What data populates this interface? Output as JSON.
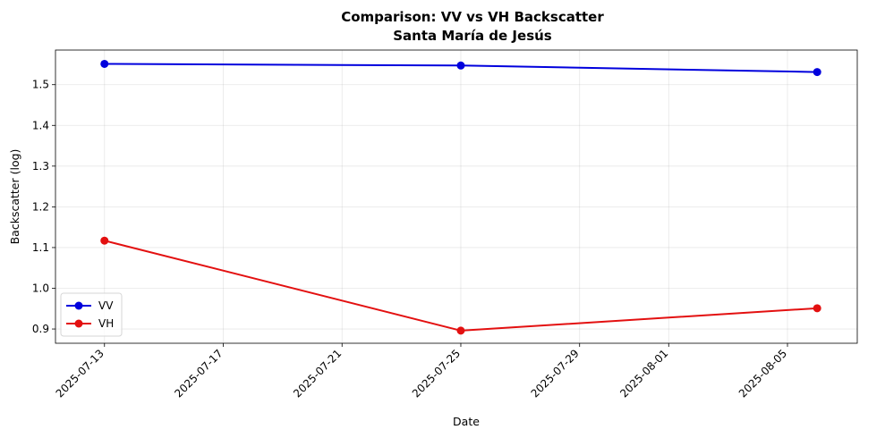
{
  "chart_data": {
    "type": "line",
    "title": "Comparison: VV vs VH Backscatter",
    "subtitle": "Santa María de Jesús",
    "xlabel": "Date",
    "ylabel": "Backscatter (log)",
    "x_type": "date",
    "xlim": [
      "2025-07-11",
      "2025-08-07"
    ],
    "ylim": [
      0.865,
      1.585
    ],
    "x_ticks": [
      "2025-07-13",
      "2025-07-17",
      "2025-07-21",
      "2025-07-25",
      "2025-07-29",
      "2025-08-01",
      "2025-08-05"
    ],
    "y_ticks": [
      0.9,
      1.0,
      1.1,
      1.2,
      1.3,
      1.4,
      1.5
    ],
    "y_tick_labels": [
      "0.9",
      "1.0",
      "1.1",
      "1.2",
      "1.3",
      "1.4",
      "1.5"
    ],
    "grid": true,
    "legend_position": "lower-left",
    "series": [
      {
        "name": "VV",
        "color": "#0000dd",
        "x": [
          "2025-07-13",
          "2025-07-25",
          "2025-08-06"
        ],
        "values": [
          1.551,
          1.547,
          1.531
        ]
      },
      {
        "name": "VH",
        "color": "#e31010",
        "x": [
          "2025-07-13",
          "2025-07-25",
          "2025-08-06"
        ],
        "values": [
          1.117,
          0.896,
          0.951
        ]
      }
    ]
  }
}
